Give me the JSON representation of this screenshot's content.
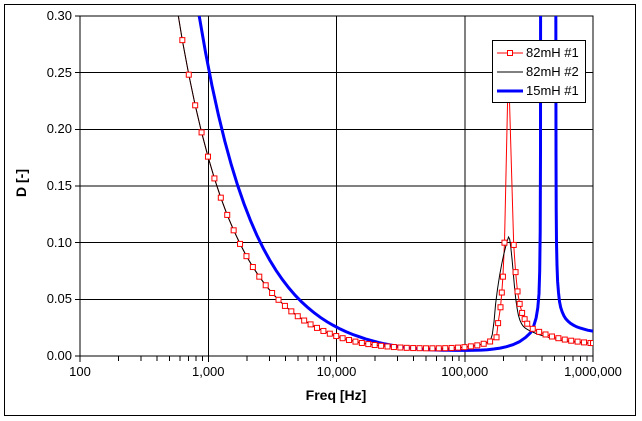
{
  "figure": {
    "background": "#ffffff",
    "border_color": "#000000",
    "grid_color": "#000000",
    "text_color": "#000000"
  },
  "chart_data": {
    "type": "line",
    "title": "",
    "xlabel": "Freq [Hz]",
    "ylabel": "D [-]",
    "x_scale": "log",
    "y_scale": "linear",
    "xlim": [
      100,
      1000000
    ],
    "ylim": [
      0.0,
      0.3
    ],
    "grid": true,
    "legend_position": "top-right",
    "x_ticks": {
      "values": [
        100,
        1000,
        10000,
        100000,
        1000000
      ],
      "labels": [
        "100",
        "1,000",
        "10,000",
        "100,000",
        "1,000,000"
      ]
    },
    "y_ticks": {
      "values": [
        0,
        0.05,
        0.1,
        0.15,
        0.2,
        0.25,
        0.3
      ],
      "labels": [
        "0.00",
        "0.05",
        "0.10",
        "0.15",
        "0.20",
        "0.25",
        "0.30"
      ]
    },
    "series": [
      {
        "name": "82mH #1",
        "color": "#ff0000",
        "line_width": 1,
        "marker": "open-square",
        "marker_size": 5,
        "marker_fill": "#ffffff",
        "points": [
          [
            560,
            0.3125
          ],
          [
            628,
            0.2787
          ],
          [
            705,
            0.2482
          ],
          [
            791,
            0.2212
          ],
          [
            887,
            0.1973
          ],
          [
            995,
            0.1759
          ],
          [
            1117,
            0.1567
          ],
          [
            1253,
            0.1397
          ],
          [
            1406,
            0.1245
          ],
          [
            1578,
            0.1109
          ],
          [
            1770,
            0.0989
          ],
          [
            1986,
            0.0881
          ],
          [
            2228,
            0.0785
          ],
          [
            2500,
            0.07
          ],
          [
            2805,
            0.0624
          ],
          [
            3147,
            0.0556
          ],
          [
            3531,
            0.0496
          ],
          [
            3962,
            0.0442
          ],
          [
            4445,
            0.0394
          ],
          [
            4988,
            0.0351
          ],
          [
            5596,
            0.0313
          ],
          [
            6279,
            0.0279
          ],
          [
            7045,
            0.0248
          ],
          [
            7904,
            0.0221
          ],
          [
            8868,
            0.0197
          ],
          [
            9950,
            0.0176
          ],
          [
            11163,
            0.0157
          ],
          [
            12525,
            0.0141
          ],
          [
            14052,
            0.0127
          ],
          [
            15766,
            0.0115
          ],
          [
            17690,
            0.0105
          ],
          [
            19848,
            0.0097
          ],
          [
            22270,
            0.009
          ],
          [
            24987,
            0.0084
          ],
          [
            28035,
            0.0079
          ],
          [
            31455,
            0.0075
          ],
          [
            35293,
            0.0072
          ],
          [
            39600,
            0.007
          ],
          [
            44432,
            0.0069
          ],
          [
            49854,
            0.0068
          ],
          [
            55938,
            0.0068
          ],
          [
            62765,
            0.0068
          ],
          [
            70425,
            0.0069
          ],
          [
            79018,
            0.0071
          ],
          [
            88660,
            0.0074
          ],
          [
            99479,
            0.0078
          ],
          [
            111618,
            0.0085
          ],
          [
            125238,
            0.0094
          ],
          [
            140518,
            0.0108
          ],
          [
            157659,
            0.0128
          ],
          [
            176895,
            0.0165
          ],
          [
            182000,
            0.029
          ],
          [
            190000,
            0.043
          ],
          [
            194500,
            0.056
          ],
          [
            198484,
            0.07
          ],
          [
            204000,
            0.1
          ],
          [
            219000,
            0.258
          ],
          [
            241000,
            0.098
          ],
          [
            249000,
            0.074
          ],
          [
            258000,
            0.057
          ],
          [
            268000,
            0.046
          ],
          [
            280000,
            0.038
          ],
          [
            293000,
            0.0325
          ],
          [
            307000,
            0.0285
          ],
          [
            339000,
            0.024
          ],
          [
            380189,
            0.0213
          ],
          [
            426580,
            0.019
          ],
          [
            478630,
            0.0172
          ],
          [
            537032,
            0.0157
          ],
          [
            602560,
            0.0145
          ],
          [
            676083,
            0.0135
          ],
          [
            758578,
            0.0127
          ],
          [
            851138,
            0.012
          ],
          [
            955000,
            0.0115
          ],
          [
            1000000,
            0.0114
          ]
        ]
      },
      {
        "name": "82mH #2",
        "color": "#000000",
        "line_width": 1,
        "marker": "none",
        "points": [
          [
            560,
            0.3125
          ],
          [
            628,
            0.2787
          ],
          [
            705,
            0.2482
          ],
          [
            791,
            0.2212
          ],
          [
            887,
            0.1973
          ],
          [
            995,
            0.1759
          ],
          [
            1117,
            0.1567
          ],
          [
            1253,
            0.1397
          ],
          [
            1406,
            0.1245
          ],
          [
            1578,
            0.1109
          ],
          [
            1770,
            0.0989
          ],
          [
            1986,
            0.0881
          ],
          [
            2228,
            0.0785
          ],
          [
            2500,
            0.07
          ],
          [
            2805,
            0.0624
          ],
          [
            3147,
            0.0556
          ],
          [
            3531,
            0.0496
          ],
          [
            3962,
            0.0442
          ],
          [
            4445,
            0.0394
          ],
          [
            4988,
            0.0351
          ],
          [
            5596,
            0.0313
          ],
          [
            6279,
            0.0279
          ],
          [
            7045,
            0.0248
          ],
          [
            7904,
            0.0221
          ],
          [
            8868,
            0.0197
          ],
          [
            9950,
            0.0176
          ],
          [
            11163,
            0.0157
          ],
          [
            12525,
            0.0141
          ],
          [
            14052,
            0.0127
          ],
          [
            15766,
            0.0115
          ],
          [
            17690,
            0.0105
          ],
          [
            19848,
            0.0097
          ],
          [
            22270,
            0.009
          ],
          [
            24987,
            0.0084
          ],
          [
            28035,
            0.0079
          ],
          [
            31455,
            0.0075
          ],
          [
            35293,
            0.0072
          ],
          [
            39600,
            0.007
          ],
          [
            44432,
            0.0069
          ],
          [
            49854,
            0.0068
          ],
          [
            55938,
            0.0068
          ],
          [
            62765,
            0.0068
          ],
          [
            70425,
            0.0069
          ],
          [
            79018,
            0.0071
          ],
          [
            88660,
            0.0074
          ],
          [
            99479,
            0.0078
          ],
          [
            111618,
            0.0085
          ],
          [
            125238,
            0.0094
          ],
          [
            140518,
            0.0108
          ],
          [
            157659,
            0.0128
          ],
          [
            164000,
            0.019
          ],
          [
            169000,
            0.03
          ],
          [
            174000,
            0.046
          ],
          [
            180000,
            0.059
          ],
          [
            187000,
            0.071
          ],
          [
            194000,
            0.081
          ],
          [
            201000,
            0.089
          ],
          [
            208000,
            0.096
          ],
          [
            214000,
            0.101
          ],
          [
            219500,
            0.105
          ],
          [
            224000,
            0.103
          ],
          [
            229000,
            0.095
          ],
          [
            234000,
            0.085
          ],
          [
            239000,
            0.073
          ],
          [
            244500,
            0.061
          ],
          [
            250000,
            0.05
          ],
          [
            256000,
            0.042
          ],
          [
            262000,
            0.036
          ],
          [
            269000,
            0.0316
          ],
          [
            277000,
            0.0285
          ],
          [
            286000,
            0.0262
          ],
          [
            297000,
            0.0245
          ],
          [
            310000,
            0.0232
          ],
          [
            325000,
            0.022
          ],
          [
            345000,
            0.0207
          ],
          [
            370000,
            0.0193
          ],
          [
            400000,
            0.0181
          ],
          [
            435000,
            0.0169
          ],
          [
            475000,
            0.0157
          ],
          [
            520000,
            0.0147
          ],
          [
            570000,
            0.0138
          ],
          [
            625000,
            0.0131
          ],
          [
            685000,
            0.0125
          ],
          [
            750000,
            0.012
          ],
          [
            820000,
            0.0117
          ],
          [
            900000,
            0.0114
          ],
          [
            1000000,
            0.0112
          ]
        ]
      },
      {
        "name": "15mH #1",
        "color": "#0000ff",
        "line_width": 3,
        "marker": "none",
        "points": [
          [
            850,
            0.3
          ],
          [
            953,
            0.2676
          ],
          [
            1069,
            0.2385
          ],
          [
            1199,
            0.2127
          ],
          [
            1345,
            0.1896
          ],
          [
            1509,
            0.169
          ],
          [
            1693,
            0.1506
          ],
          [
            1899,
            0.1343
          ],
          [
            2130,
            0.1197
          ],
          [
            2389,
            0.1067
          ],
          [
            2680,
            0.0951
          ],
          [
            3006,
            0.0848
          ],
          [
            3373,
            0.0756
          ],
          [
            3784,
            0.0674
          ],
          [
            4245,
            0.0601
          ],
          [
            4762,
            0.0536
          ],
          [
            5342,
            0.0477
          ],
          [
            5993,
            0.0426
          ],
          [
            6723,
            0.0379
          ],
          [
            7542,
            0.0338
          ],
          [
            8461,
            0.0301
          ],
          [
            9492,
            0.0269
          ],
          [
            10648,
            0.0239
          ],
          [
            11945,
            0.0213
          ],
          [
            13400,
            0.019
          ],
          [
            15033,
            0.017
          ],
          [
            16864,
            0.0151
          ],
          [
            18919,
            0.0135
          ],
          [
            21224,
            0.012
          ],
          [
            23810,
            0.0107
          ],
          [
            26711,
            0.0096
          ],
          [
            29965,
            0.0086
          ],
          [
            33616,
            0.0078
          ],
          [
            37712,
            0.0071
          ],
          [
            42307,
            0.0065
          ],
          [
            47462,
            0.006
          ],
          [
            53245,
            0.0056
          ],
          [
            59733,
            0.0053
          ],
          [
            67011,
            0.0051
          ],
          [
            75176,
            0.005
          ],
          [
            84336,
            0.0049
          ],
          [
            94612,
            0.0049
          ],
          [
            106139,
            0.0049
          ],
          [
            119071,
            0.005
          ],
          [
            133580,
            0.0052
          ],
          [
            149857,
            0.0056
          ],
          [
            168117,
            0.0062
          ],
          [
            188601,
            0.007
          ],
          [
            211583,
            0.0082
          ],
          [
            237365,
            0.01
          ],
          [
            266289,
            0.0125
          ],
          [
            298735,
            0.0165
          ],
          [
            325000,
            0.0205
          ],
          [
            345000,
            0.0265
          ],
          [
            360000,
            0.0335
          ],
          [
            371000,
            0.0425
          ],
          [
            379000,
            0.055
          ],
          [
            384000,
            0.075
          ],
          [
            387500,
            0.11
          ],
          [
            389500,
            0.18
          ],
          [
            390500,
            0.33
          ],
          [
            513000,
            0.33
          ],
          [
            514500,
            0.18
          ],
          [
            516500,
            0.13
          ],
          [
            519500,
            0.1
          ],
          [
            524000,
            0.08
          ],
          [
            530000,
            0.066
          ],
          [
            538000,
            0.056
          ],
          [
            548000,
            0.048
          ],
          [
            560000,
            0.0428
          ],
          [
            575000,
            0.0388
          ],
          [
            593000,
            0.0355
          ],
          [
            614000,
            0.0328
          ],
          [
            639000,
            0.0306
          ],
          [
            669000,
            0.0288
          ],
          [
            704000,
            0.0272
          ],
          [
            745000,
            0.0258
          ],
          [
            792000,
            0.0247
          ],
          [
            846000,
            0.0237
          ],
          [
            908000,
            0.0228
          ],
          [
            1000000,
            0.0219
          ]
        ]
      }
    ]
  }
}
